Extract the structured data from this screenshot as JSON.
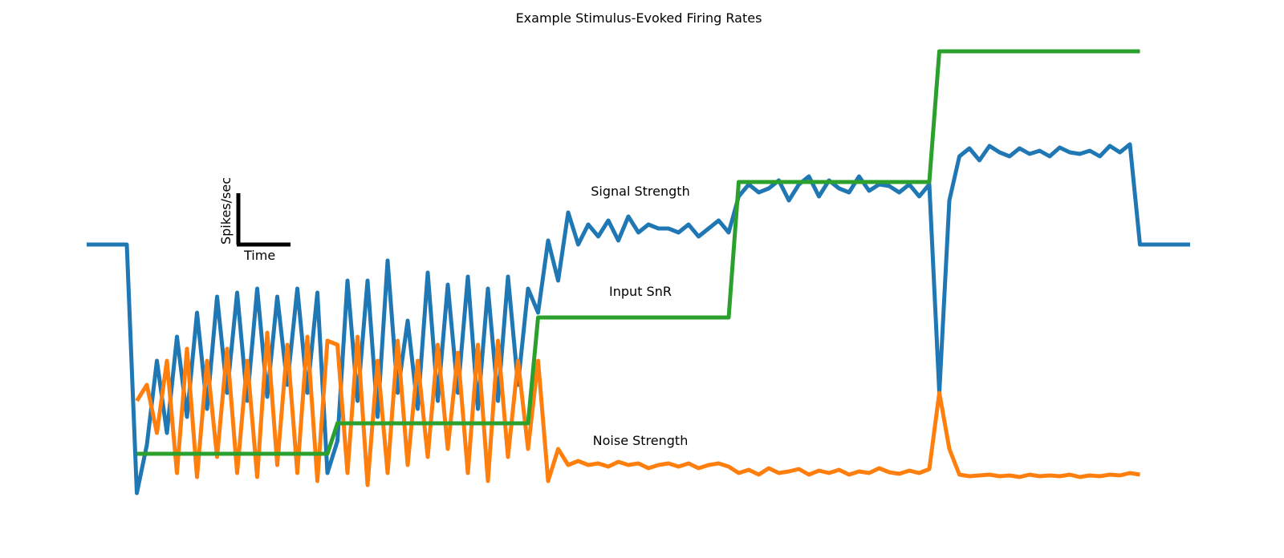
{
  "chart_data": {
    "type": "line",
    "title": "Example Stimulus-Evoked Firing Rates",
    "annotations": [
      "Signal Strength",
      "Input SnR",
      "Noise Strength"
    ],
    "scale_bar": {
      "y_label": "Spikes/sec",
      "x_label": "Time"
    },
    "x": [
      0,
      1,
      2,
      3,
      4,
      5,
      6,
      7,
      8,
      9,
      10,
      11,
      12,
      13,
      14,
      15,
      16,
      17,
      18,
      19,
      20,
      21,
      22,
      23,
      24,
      25,
      26,
      27,
      28,
      29,
      30,
      31,
      32,
      33,
      34,
      35,
      36,
      37,
      38,
      39,
      40,
      41,
      42,
      43,
      44,
      45,
      46,
      47,
      48,
      49,
      50,
      51,
      52,
      53,
      54,
      55,
      56,
      57,
      58,
      59,
      60,
      61,
      62,
      63,
      64,
      65,
      66,
      67,
      68,
      69,
      70,
      71,
      72,
      73,
      74,
      75,
      76,
      77,
      78,
      79,
      80,
      81,
      82,
      83,
      84,
      85,
      86,
      87,
      88,
      89,
      90,
      91,
      92,
      93,
      94,
      95,
      96,
      97,
      98,
      99,
      100,
      101,
      102,
      103,
      104,
      105,
      106,
      107,
      108,
      109,
      110
    ],
    "xlim": [
      0,
      110
    ],
    "ylim": [
      0,
      650
    ],
    "series": [
      {
        "color": "#1f77b4",
        "values": [
          345,
          345,
          345,
          345,
          345,
          35,
          95,
          200,
          110,
          230,
          130,
          260,
          140,
          280,
          160,
          285,
          150,
          290,
          155,
          280,
          170,
          290,
          160,
          285,
          60,
          100,
          300,
          150,
          300,
          130,
          325,
          160,
          250,
          140,
          310,
          150,
          295,
          160,
          305,
          140,
          290,
          150,
          305,
          170,
          290,
          260,
          350,
          300,
          385,
          345,
          370,
          355,
          375,
          350,
          380,
          360,
          370,
          365,
          365,
          360,
          370,
          355,
          365,
          375,
          360,
          405,
          420,
          410,
          415,
          425,
          400,
          420,
          430,
          405,
          425,
          415,
          410,
          430,
          412,
          420,
          418,
          410,
          420,
          405,
          420,
          160,
          400,
          455,
          465,
          450,
          468,
          460,
          455,
          465,
          458,
          462,
          455,
          466,
          460,
          458,
          462,
          455,
          468,
          460,
          470,
          345,
          345,
          345,
          345,
          345,
          345
        ]
      },
      {
        "color": "#ff7f0e",
        "values": [
          null,
          null,
          null,
          null,
          null,
          150,
          170,
          110,
          200,
          60,
          215,
          55,
          200,
          80,
          215,
          60,
          200,
          55,
          235,
          70,
          220,
          60,
          230,
          50,
          225,
          220,
          60,
          230,
          45,
          200,
          60,
          225,
          70,
          200,
          80,
          220,
          90,
          210,
          60,
          220,
          50,
          225,
          80,
          200,
          90,
          200,
          50,
          90,
          70,
          75,
          70,
          72,
          68,
          74,
          70,
          72,
          66,
          70,
          72,
          68,
          72,
          66,
          70,
          72,
          68,
          60,
          64,
          58,
          66,
          60,
          62,
          65,
          58,
          63,
          60,
          64,
          58,
          62,
          60,
          66,
          61,
          59,
          63,
          60,
          65,
          160,
          90,
          58,
          56,
          57,
          58,
          56,
          57,
          55,
          58,
          56,
          57,
          56,
          58,
          55,
          57,
          56,
          58,
          57,
          60,
          58,
          null,
          null,
          null,
          null,
          null
        ]
      },
      {
        "color": "#2ca02c",
        "values": [
          null,
          null,
          null,
          null,
          null,
          84,
          84,
          84,
          84,
          84,
          84,
          84,
          84,
          84,
          84,
          84,
          84,
          84,
          84,
          84,
          84,
          84,
          84,
          84,
          84,
          122,
          122,
          122,
          122,
          122,
          122,
          122,
          122,
          122,
          122,
          122,
          122,
          122,
          122,
          122,
          122,
          122,
          122,
          122,
          122,
          254,
          254,
          254,
          254,
          254,
          254,
          254,
          254,
          254,
          254,
          254,
          254,
          254,
          254,
          254,
          254,
          254,
          254,
          254,
          254,
          423,
          423,
          423,
          423,
          423,
          423,
          423,
          423,
          423,
          423,
          423,
          423,
          423,
          423,
          423,
          423,
          423,
          423,
          423,
          423,
          586,
          586,
          586,
          586,
          586,
          586,
          586,
          586,
          586,
          586,
          586,
          586,
          586,
          586,
          586,
          586,
          586,
          586,
          586,
          586,
          586,
          null,
          null,
          null,
          null,
          null
        ]
      }
    ]
  }
}
